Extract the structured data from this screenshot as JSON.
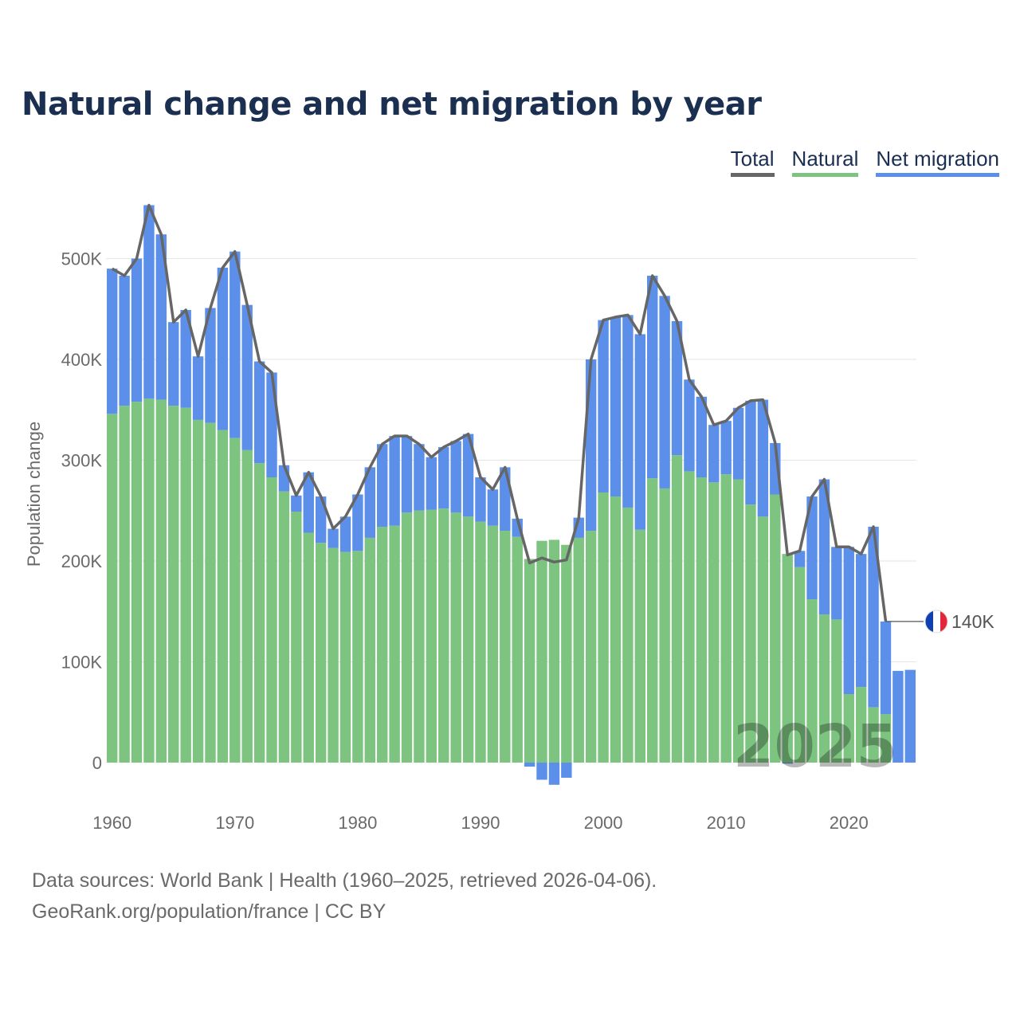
{
  "title": "Natural change and net migration by year",
  "legend": [
    {
      "label": "Total",
      "color": "#666666"
    },
    {
      "label": "Natural",
      "color": "#7cc47f"
    },
    {
      "label": "Net migration",
      "color": "#5b8fea"
    }
  ],
  "footer": {
    "sources": "Data sources: World Bank | Health (1960–2025, retrieved 2026-04-06).",
    "credit": "GeoRank.org/population/france | CC BY"
  },
  "chart_data": {
    "type": "bar",
    "stacked": true,
    "title": "Natural change and net migration by year",
    "xlabel": "",
    "ylabel": "Population change",
    "ylim": [
      -25000,
      555000
    ],
    "y_ticks": [
      0,
      100000,
      200000,
      300000,
      400000,
      500000
    ],
    "y_tick_labels": [
      "0",
      "100K",
      "200K",
      "300K",
      "400K",
      "500K"
    ],
    "x_ticks": [
      1960,
      1970,
      1980,
      1990,
      2000,
      2010,
      2020
    ],
    "watermark_year": "2025",
    "annotation": {
      "year": 2023,
      "value": 140000,
      "label": "140K",
      "flag": "France"
    },
    "years": [
      1960,
      1961,
      1962,
      1963,
      1964,
      1965,
      1966,
      1967,
      1968,
      1969,
      1970,
      1971,
      1972,
      1973,
      1974,
      1975,
      1976,
      1977,
      1978,
      1979,
      1980,
      1981,
      1982,
      1983,
      1984,
      1985,
      1986,
      1987,
      1988,
      1989,
      1990,
      1991,
      1992,
      1993,
      1994,
      1995,
      1996,
      1997,
      1998,
      1999,
      2000,
      2001,
      2002,
      2003,
      2004,
      2005,
      2006,
      2007,
      2008,
      2009,
      2010,
      2011,
      2012,
      2013,
      2014,
      2015,
      2016,
      2017,
      2018,
      2019,
      2020,
      2021,
      2022,
      2023,
      2024,
      2025
    ],
    "series": [
      {
        "name": "Natural",
        "color": "#7cc47f",
        "values": [
          346000,
          354000,
          358000,
          361000,
          360000,
          354000,
          352000,
          340000,
          337000,
          330000,
          322000,
          310000,
          297000,
          283000,
          269000,
          249000,
          228000,
          218000,
          213000,
          209000,
          210000,
          223000,
          234000,
          235000,
          248000,
          250000,
          251000,
          252000,
          248000,
          244000,
          239000,
          235000,
          230000,
          224000,
          202000,
          220000,
          221000,
          216000,
          223000,
          230000,
          268000,
          264000,
          253000,
          231000,
          282000,
          272000,
          305000,
          289000,
          283000,
          278000,
          286000,
          281000,
          256000,
          244000,
          266000,
          207000,
          194000,
          162000,
          147000,
          142000,
          68000,
          75000,
          55000,
          48000,
          null,
          null
        ]
      },
      {
        "name": "Net migration",
        "color": "#5b8fea",
        "values": [
          144000,
          129000,
          142000,
          192000,
          164000,
          83000,
          97000,
          63000,
          114000,
          161000,
          185000,
          144000,
          101000,
          104000,
          26000,
          16000,
          60000,
          46000,
          19000,
          35000,
          56000,
          70000,
          82000,
          89000,
          76000,
          66000,
          52000,
          61000,
          71000,
          82000,
          44000,
          36000,
          63000,
          18000,
          -4000,
          -17000,
          -22000,
          -15000,
          20000,
          170000,
          171000,
          178000,
          191000,
          194000,
          201000,
          191000,
          133000,
          91000,
          80000,
          57000,
          53000,
          71000,
          103000,
          116000,
          51000,
          -1000,
          16000,
          102000,
          134000,
          72000,
          146000,
          132000,
          179000,
          92000,
          91000,
          92000
        ]
      },
      {
        "name": "Total",
        "color": "#666666",
        "values": [
          490000,
          483000,
          500000,
          553000,
          524000,
          437000,
          449000,
          403000,
          451000,
          491000,
          507000,
          454000,
          398000,
          387000,
          295000,
          265000,
          288000,
          264000,
          232000,
          244000,
          266000,
          293000,
          316000,
          324000,
          324000,
          316000,
          303000,
          313000,
          319000,
          326000,
          283000,
          271000,
          293000,
          242000,
          198000,
          203000,
          199000,
          201000,
          243000,
          400000,
          439000,
          442000,
          444000,
          425000,
          483000,
          463000,
          438000,
          380000,
          363000,
          335000,
          339000,
          352000,
          359000,
          360000,
          317000,
          206000,
          210000,
          264000,
          281000,
          214000,
          214000,
          207000,
          234000,
          140000,
          null,
          null
        ]
      }
    ]
  }
}
